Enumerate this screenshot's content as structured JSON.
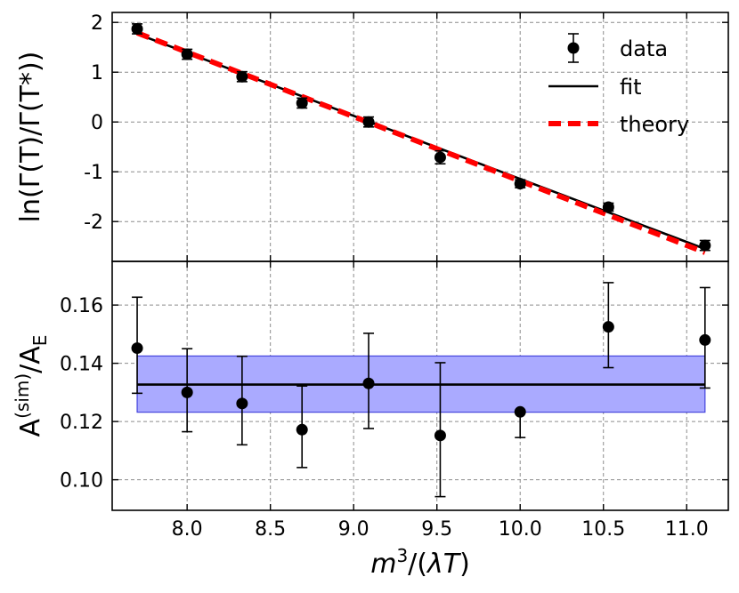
{
  "chart_data": [
    {
      "type": "scatter",
      "panel": "top",
      "xlabel": "",
      "ylabel": "ln(Γ(T)/Γ(T*))",
      "xlim": [
        7.55,
        11.25
      ],
      "ylim": [
        -2.8,
        2.2
      ],
      "xticks": [
        8.0,
        8.5,
        9.0,
        9.5,
        10.0,
        10.5,
        11.0
      ],
      "yticks": [
        2,
        1,
        0,
        -1,
        -2
      ],
      "ytick_labels": [
        "2",
        "1",
        "0",
        "-1",
        "-2"
      ],
      "grid": true,
      "legend": {
        "placement": "top-right",
        "entries": [
          "data",
          "fit",
          "theory"
        ]
      },
      "series": [
        {
          "name": "data",
          "kind": "errorbar",
          "color": "#000000",
          "x": [
            7.7,
            8.0,
            8.33,
            8.69,
            9.09,
            9.52,
            10.0,
            10.53,
            11.11
          ],
          "y": [
            1.87,
            1.36,
            0.91,
            0.38,
            0.0,
            -0.71,
            -1.24,
            -1.71,
            -2.48
          ],
          "yerr": [
            0.1,
            0.1,
            0.1,
            0.1,
            0.1,
            0.13,
            0.08,
            0.08,
            0.1
          ]
        },
        {
          "name": "fit",
          "kind": "line",
          "color": "#000000",
          "x": [
            7.7,
            11.11
          ],
          "y": [
            1.77,
            -2.55
          ]
        },
        {
          "name": "theory",
          "kind": "dashed-line",
          "color": "#ff0000",
          "x": [
            7.7,
            11.11
          ],
          "y": [
            1.79,
            -2.62
          ]
        }
      ]
    },
    {
      "type": "scatter",
      "panel": "bottom",
      "xlabel": "m³/(λT)",
      "ylabel": "A^(sim)/A_E",
      "xlim": [
        7.55,
        11.25
      ],
      "ylim": [
        0.0895,
        0.175
      ],
      "xticks": [
        8.0,
        8.5,
        9.0,
        9.5,
        10.0,
        10.5,
        11.0
      ],
      "xtick_labels": [
        "8.0",
        "8.5",
        "9.0",
        "9.5",
        "10.0",
        "10.5",
        "11.0"
      ],
      "yticks": [
        0.16,
        0.14,
        0.12,
        0.1
      ],
      "ytick_labels": [
        "0.16",
        "0.14",
        "0.12",
        "0.10"
      ],
      "grid": true,
      "series": [
        {
          "name": "data",
          "kind": "errorbar",
          "color": "#000000",
          "x": [
            7.7,
            8.0,
            8.33,
            8.69,
            9.09,
            9.52,
            10.0,
            10.53,
            11.11
          ],
          "y": [
            0.1452,
            0.13,
            0.1262,
            0.1172,
            0.1331,
            0.1152,
            0.1233,
            0.1525,
            0.148
          ],
          "yerr_low": [
            0.0155,
            0.0135,
            0.0142,
            0.013,
            0.0155,
            0.021,
            0.0088,
            0.014,
            0.0165
          ],
          "yerr_high": [
            0.0175,
            0.015,
            0.0162,
            0.015,
            0.0172,
            0.025,
            0.0,
            0.0152,
            0.018
          ]
        },
        {
          "name": "mean",
          "kind": "hline",
          "color": "#000000",
          "x": [
            7.7,
            11.11
          ],
          "y": 0.1327
        },
        {
          "name": "band",
          "kind": "band",
          "color": "#aaaaff",
          "edge_color": "#4444dd",
          "x": [
            7.7,
            11.11
          ],
          "y_low": 0.1232,
          "y_high": 0.1425
        }
      ]
    }
  ]
}
